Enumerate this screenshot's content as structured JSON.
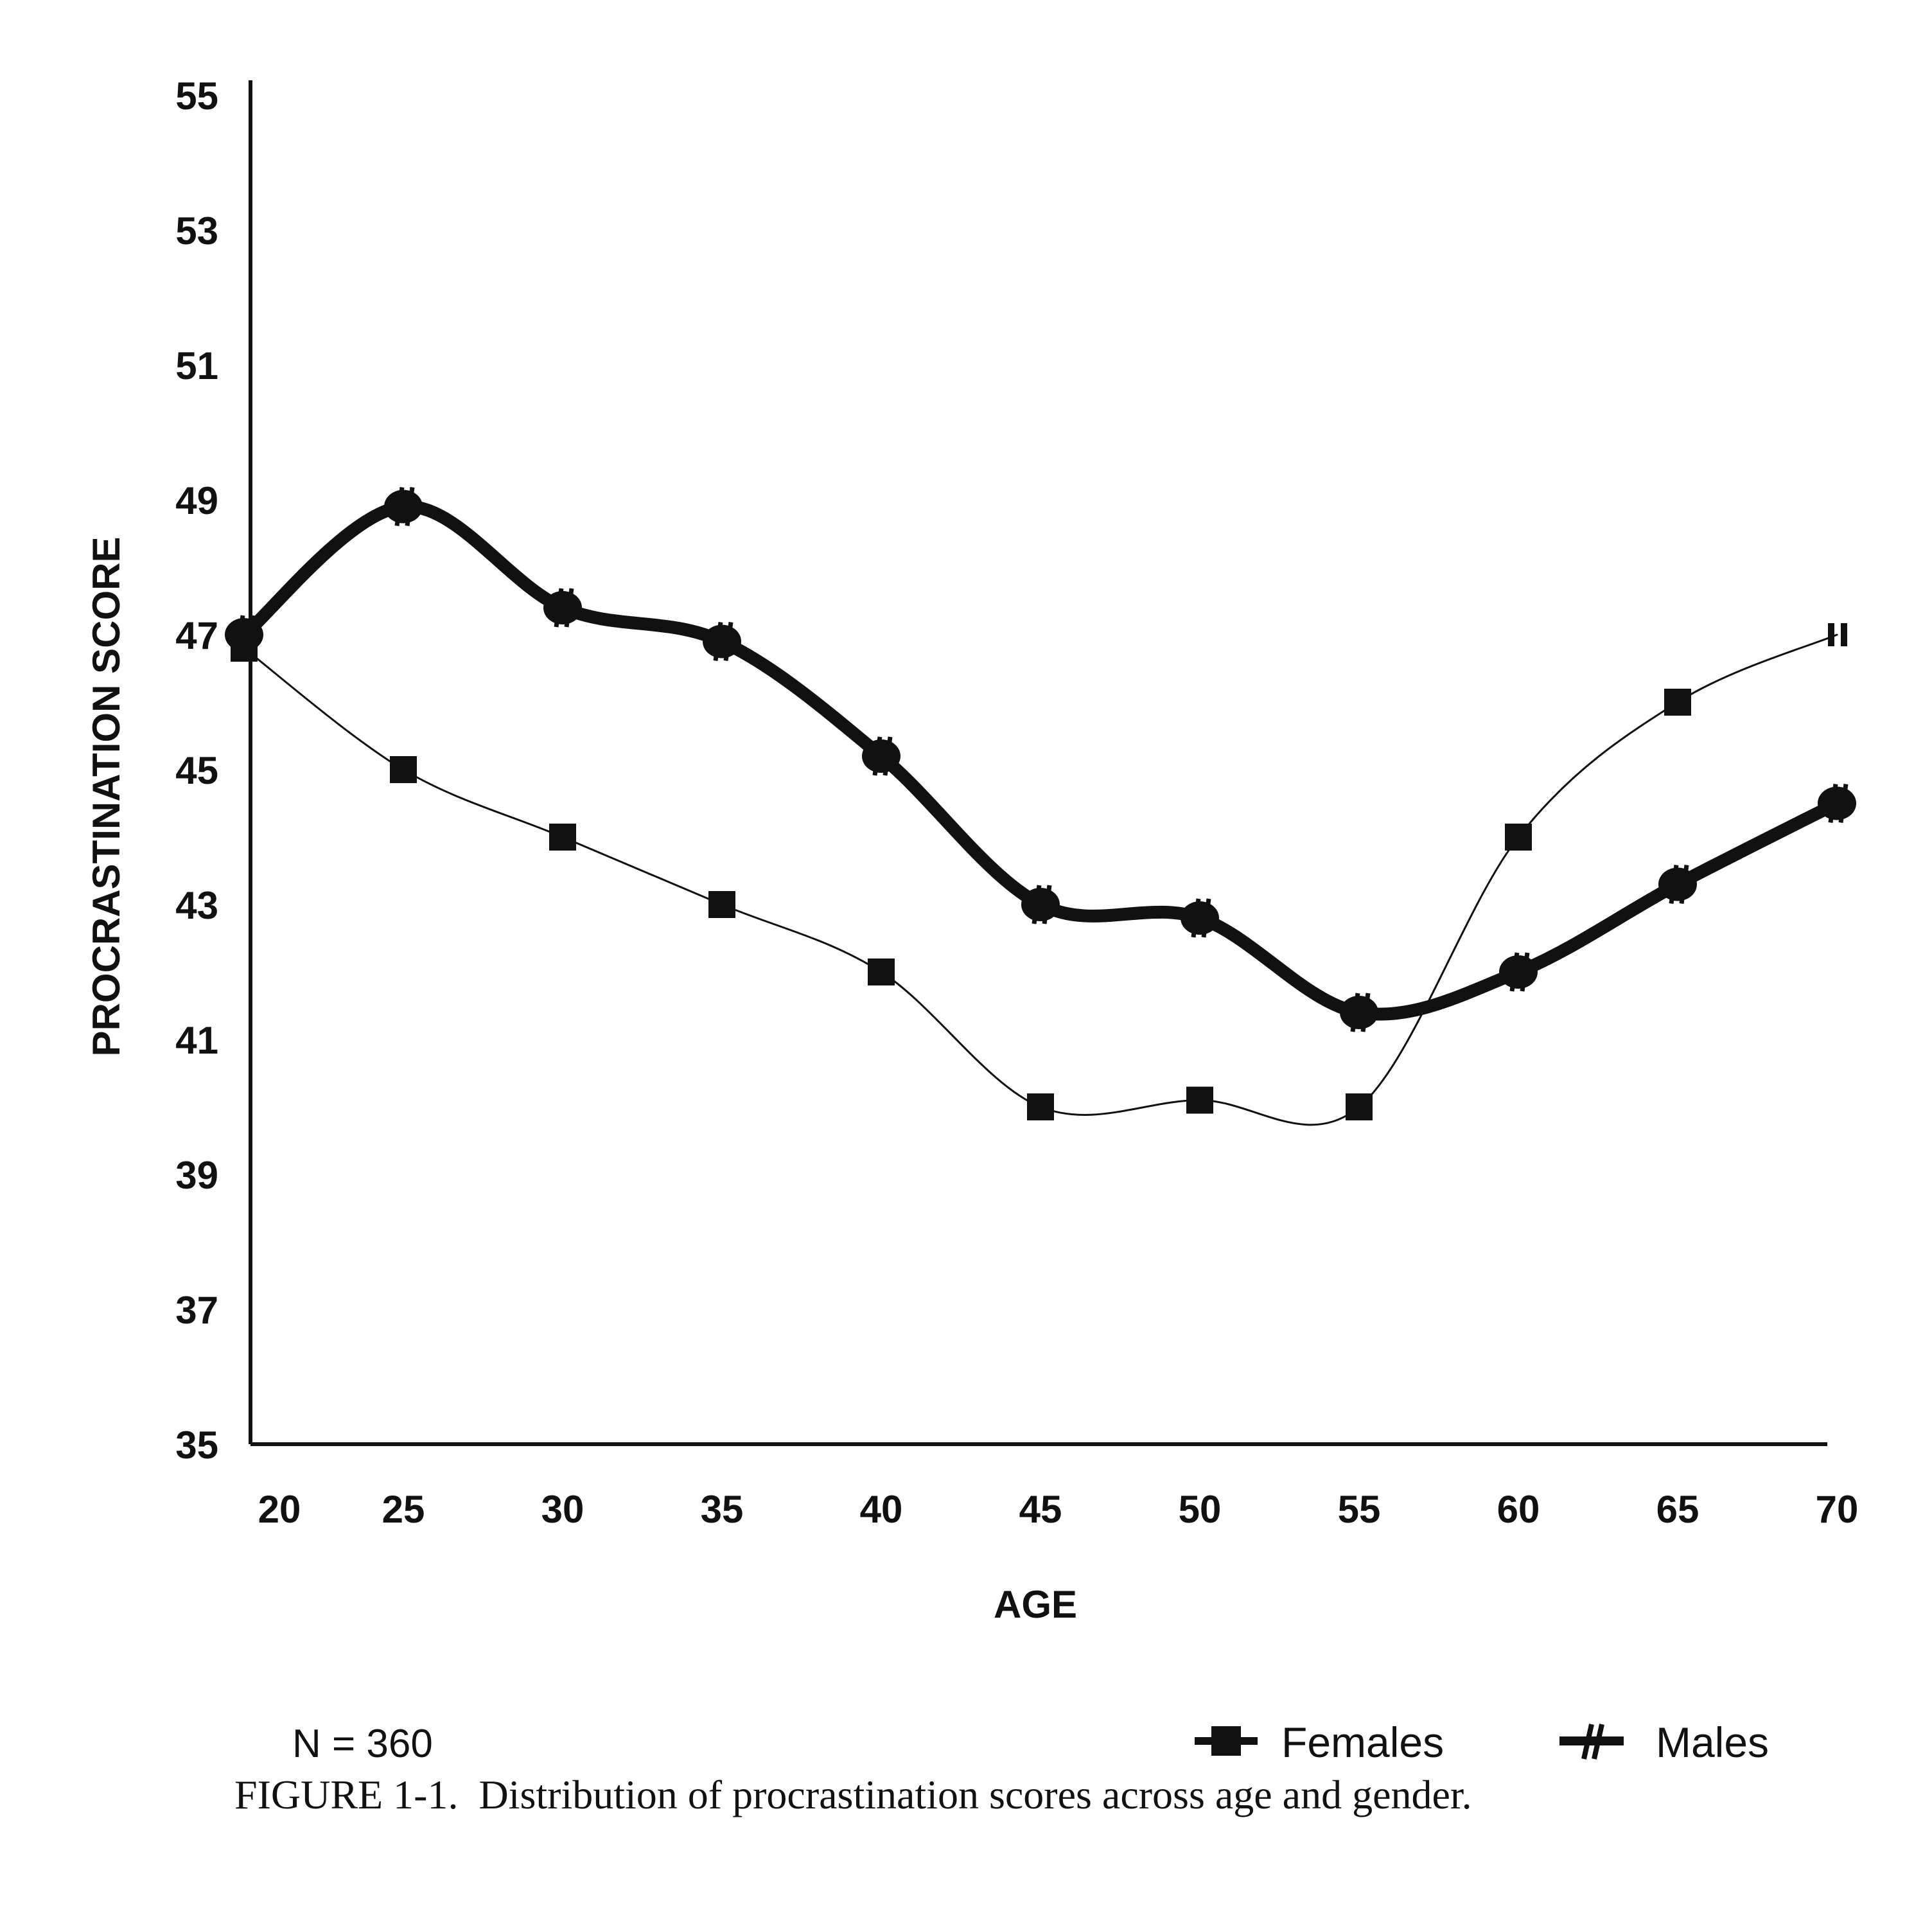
{
  "chart_data": {
    "type": "line",
    "xlabel": "AGE",
    "ylabel": "PROCRASTINATION SCORE",
    "x": [
      20,
      25,
      30,
      35,
      40,
      45,
      50,
      55,
      60,
      65,
      70
    ],
    "x_tick_labels": [
      "20",
      "25",
      "30",
      "35",
      "40",
      "45",
      "50",
      "55",
      "60",
      "65",
      "70"
    ],
    "y_tick_labels": [
      "35",
      "37",
      "39",
      "41",
      "43",
      "45",
      "47",
      "49",
      "51",
      "53",
      "55"
    ],
    "ylim": [
      35,
      55
    ],
    "grid": false,
    "legend_position": "bottom-right",
    "series": [
      {
        "name": "Females",
        "marker": "square",
        "line": "thin",
        "values": [
          46.8,
          45.0,
          44.0,
          43.0,
          42.0,
          40.0,
          40.1,
          40.0,
          44.0,
          46.0,
          47.0
        ]
      },
      {
        "name": "Males",
        "marker": "hash",
        "line": "thick",
        "values": [
          47.0,
          48.9,
          47.4,
          46.9,
          45.2,
          43.0,
          42.8,
          41.4,
          42.0,
          43.3,
          44.5
        ]
      }
    ],
    "annotations": {
      "n_label": "N = 360",
      "caption": "FIGURE 1-1.  Distribution of procrastination scores across age and gender."
    }
  }
}
